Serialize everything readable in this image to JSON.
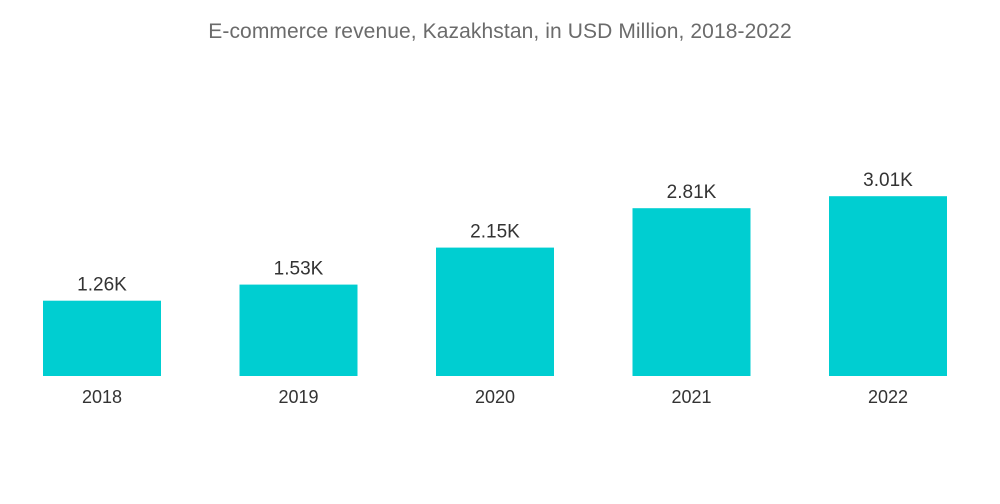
{
  "chart_data": {
    "type": "bar",
    "title": "E-commerce revenue, Kazakhstan, in USD Million, 2018-2022",
    "xlabel": "",
    "ylabel": "",
    "categories": [
      "2018",
      "2019",
      "2020",
      "2021",
      "2022"
    ],
    "values": [
      1260,
      1530,
      2150,
      2810,
      3010
    ],
    "value_labels": [
      "1.26K",
      "1.53K",
      "2.15K",
      "2.81K",
      "3.01K"
    ],
    "ylim": [
      0,
      4000
    ],
    "grid": false,
    "legend": "none",
    "bar_color": "#00ced1"
  }
}
